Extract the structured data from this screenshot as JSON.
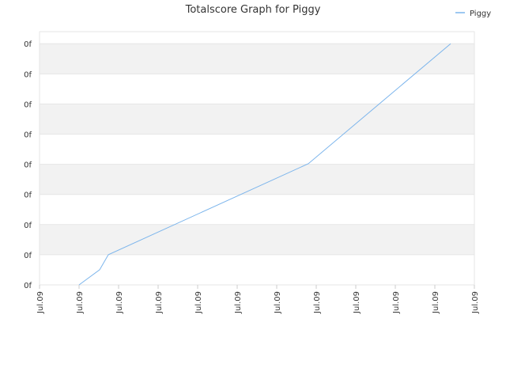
{
  "chart_data": {
    "type": "line",
    "title": "Totalscore Graph for Piggy",
    "x": [
      1,
      1.52,
      1.74,
      6.8,
      10.4
    ],
    "series": [
      {
        "name": "Piggy",
        "color": "#7cb5ec",
        "values": [
          0,
          0.5,
          1,
          4.02,
          8
        ]
      }
    ],
    "xlim": [
      0,
      11
    ],
    "xticks": [
      {
        "value": 0,
        "label": "Jul.09"
      },
      {
        "value": 1,
        "label": "Jul.09"
      },
      {
        "value": 2,
        "label": "Jul.09"
      },
      {
        "value": 3,
        "label": "Jul.09"
      },
      {
        "value": 4,
        "label": "Jul.09"
      },
      {
        "value": 5,
        "label": "Jul.09"
      },
      {
        "value": 6,
        "label": "Jul.09"
      },
      {
        "value": 7,
        "label": "Jul.09"
      },
      {
        "value": 8,
        "label": "Jul.09"
      },
      {
        "value": 9,
        "label": "Jul.09"
      },
      {
        "value": 10,
        "label": "Jul.09"
      },
      {
        "value": 11,
        "label": "Jul.09"
      }
    ],
    "ylim": [
      0,
      8.4
    ],
    "yticks": [
      {
        "value": 0,
        "label": "0f"
      },
      {
        "value": 1,
        "label": "0f"
      },
      {
        "value": 2,
        "label": "0f"
      },
      {
        "value": 3,
        "label": "0f"
      },
      {
        "value": 4,
        "label": "0f"
      },
      {
        "value": 5,
        "label": "0f"
      },
      {
        "value": 6,
        "label": "0f"
      },
      {
        "value": 7,
        "label": "0f"
      },
      {
        "value": 8,
        "label": "0f"
      }
    ],
    "grid": true,
    "legend": "top-right"
  }
}
